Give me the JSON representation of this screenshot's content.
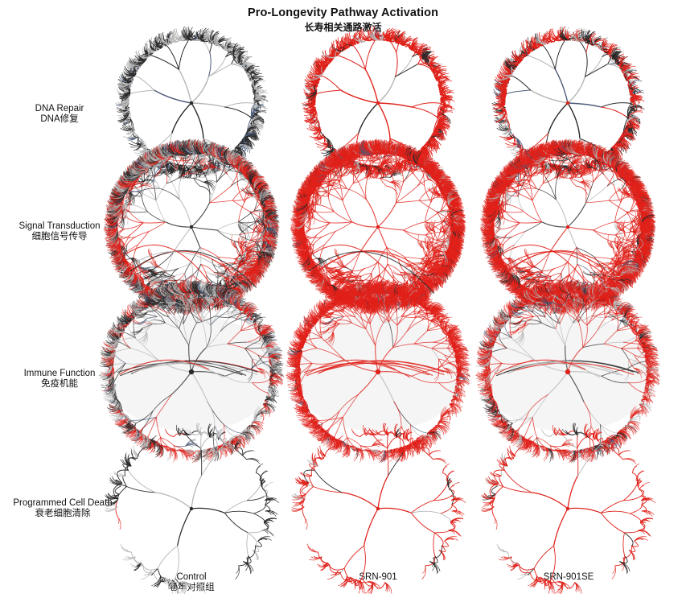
{
  "title": "Pro-Longevity Pathway Activation",
  "subtitle": "长寿相关通路激活",
  "rows": [
    {
      "name": "DNA Repair",
      "name_cn": "DNA修复"
    },
    {
      "name": "Signal Transduction",
      "name_cn": "细胞信号传导"
    },
    {
      "name": "Immune Function",
      "name_cn": "免疫机能"
    },
    {
      "name": "Programmed Cell Death",
      "name_cn": "衰老细胞清除"
    }
  ],
  "columns": [
    {
      "name": "Control",
      "name_cn": "老年对照组"
    },
    {
      "name": "SRN-901",
      "name_cn": ""
    },
    {
      "name": "SRN-901SE",
      "name_cn": ""
    }
  ],
  "colors": {
    "activated": "#e0221b",
    "baseline_dark": "#2a2a2a",
    "baseline_light": "#b5b5b5",
    "accent_blue": "#4a5a78"
  },
  "activation_level": [
    [
      0.0,
      0.55,
      0.35
    ],
    [
      0.15,
      0.7,
      0.55
    ],
    [
      0.1,
      0.8,
      0.35
    ],
    [
      0.05,
      0.7,
      0.55
    ]
  ]
}
